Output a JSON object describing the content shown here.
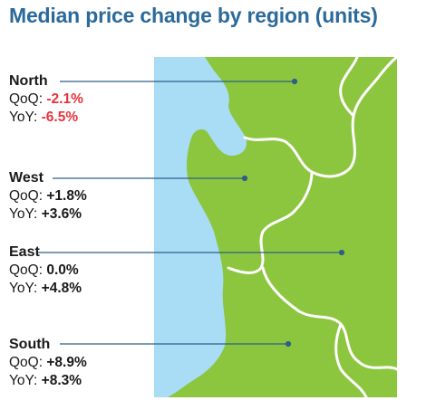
{
  "title": "Median price change by region (units)",
  "colors": {
    "title": "#2b6a9a",
    "land": "#8cc63f",
    "water": "#a9dcf5",
    "negative": "#e8323c",
    "leader": "#2e5f86"
  },
  "regions": [
    {
      "name": "North",
      "qoq_label": "QoQ:",
      "qoq": "-2.1%",
      "yoy_label": "YoY:",
      "yoy": "-6.5%",
      "negative": true
    },
    {
      "name": "West",
      "qoq_label": "QoQ:",
      "qoq": "+1.8%",
      "yoy_label": "YoY:",
      "yoy": "+3.6%",
      "negative": false
    },
    {
      "name": "East",
      "qoq_label": "QoQ:",
      "qoq": "0.0%",
      "yoy_label": "YoY:",
      "yoy": "+4.8%",
      "negative": false
    },
    {
      "name": "South",
      "qoq_label": "QoQ:",
      "qoq": "+8.9%",
      "yoy_label": "YoY:",
      "yoy": "+8.3%",
      "negative": false
    }
  ]
}
